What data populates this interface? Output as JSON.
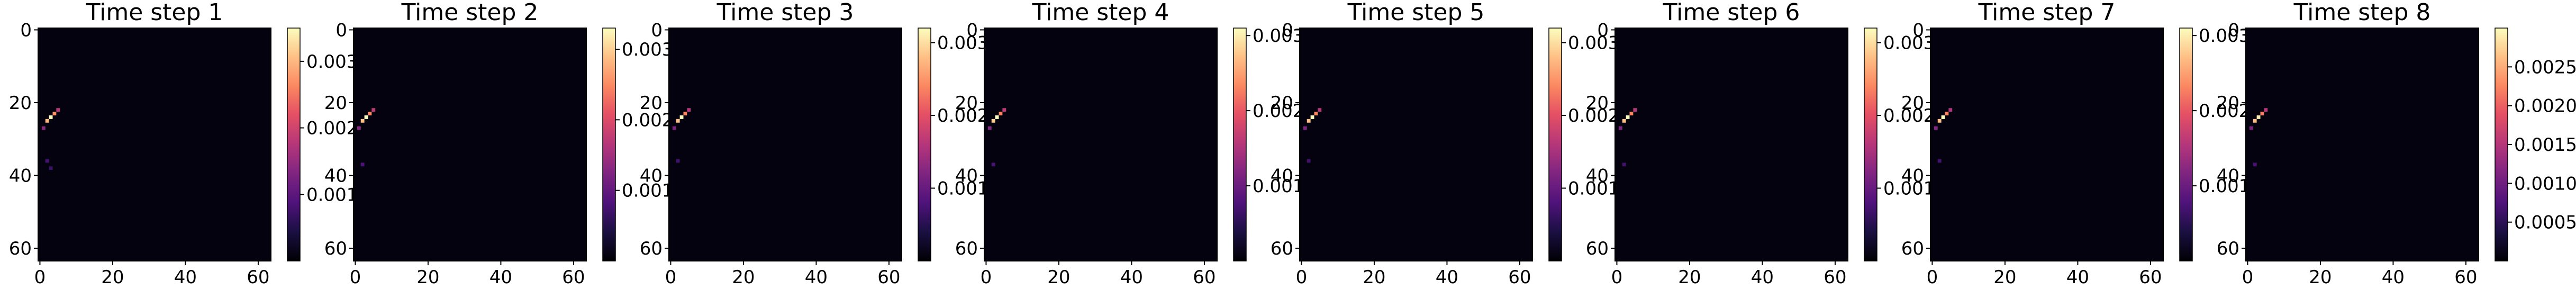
{
  "chart_data": [
    {
      "type": "heatmap",
      "title": "Time step 1",
      "colormap": "magma",
      "xticks": [
        "0",
        "20",
        "40",
        "60"
      ],
      "yticks": [
        "0",
        "20",
        "40",
        "60"
      ],
      "xlim": [
        0,
        64
      ],
      "ylim": [
        64,
        0
      ],
      "colorbar": {
        "range": [
          0,
          0.0035
        ],
        "ticks": [
          {
            "value": 0.001,
            "label": "0.001"
          },
          {
            "value": 0.002,
            "label": "0.002"
          },
          {
            "value": 0.003,
            "label": "0.003"
          }
        ]
      },
      "hotspots": [
        {
          "x": 3,
          "y": 24,
          "value": 0.0035
        },
        {
          "x": 2,
          "y": 25,
          "value": 0.003
        },
        {
          "x": 4,
          "y": 23,
          "value": 0.0027
        },
        {
          "x": 5,
          "y": 22,
          "value": 0.0018
        },
        {
          "x": 1,
          "y": 27,
          "value": 0.0014
        },
        {
          "x": 2,
          "y": 36,
          "value": 0.0008
        },
        {
          "x": 3,
          "y": 38,
          "value": 0.0007
        }
      ]
    },
    {
      "type": "heatmap",
      "title": "Time step 2",
      "colormap": "magma",
      "xticks": [
        "0",
        "20",
        "40",
        "60"
      ],
      "yticks": [
        "0",
        "20",
        "40",
        "60"
      ],
      "xlim": [
        0,
        64
      ],
      "ylim": [
        64,
        0
      ],
      "colorbar": {
        "range": [
          0,
          0.0033
        ],
        "ticks": [
          {
            "value": 0.001,
            "label": "0.001"
          },
          {
            "value": 0.002,
            "label": "0.002"
          },
          {
            "value": 0.003,
            "label": "0.003"
          }
        ]
      },
      "hotspots": [
        {
          "x": 3,
          "y": 24,
          "value": 0.0033
        },
        {
          "x": 2,
          "y": 25,
          "value": 0.0029
        },
        {
          "x": 4,
          "y": 23,
          "value": 0.0025
        },
        {
          "x": 5,
          "y": 22,
          "value": 0.0017
        },
        {
          "x": 1,
          "y": 27,
          "value": 0.0013
        },
        {
          "x": 2,
          "y": 37,
          "value": 0.0008
        }
      ]
    },
    {
      "type": "heatmap",
      "title": "Time step 3",
      "colormap": "magma",
      "xticks": [
        "0",
        "20",
        "40",
        "60"
      ],
      "yticks": [
        "0",
        "20",
        "40",
        "60"
      ],
      "xlim": [
        0,
        64
      ],
      "ylim": [
        64,
        0
      ],
      "colorbar": {
        "range": [
          0,
          0.0032
        ],
        "ticks": [
          {
            "value": 0.001,
            "label": "0.001"
          },
          {
            "value": 0.002,
            "label": "0.002"
          },
          {
            "value": 0.003,
            "label": "0.003"
          }
        ]
      },
      "hotspots": [
        {
          "x": 3,
          "y": 24,
          "value": 0.0032
        },
        {
          "x": 2,
          "y": 25,
          "value": 0.0028
        },
        {
          "x": 4,
          "y": 23,
          "value": 0.0024
        },
        {
          "x": 5,
          "y": 22,
          "value": 0.0016
        },
        {
          "x": 1,
          "y": 27,
          "value": 0.0012
        },
        {
          "x": 2,
          "y": 36,
          "value": 0.0007
        }
      ]
    },
    {
      "type": "heatmap",
      "title": "Time step 4",
      "colormap": "magma",
      "xticks": [
        "0",
        "20",
        "40",
        "60"
      ],
      "yticks": [
        "0",
        "20",
        "40",
        "60"
      ],
      "xlim": [
        0,
        64
      ],
      "ylim": [
        64,
        0
      ],
      "colorbar": {
        "range": [
          0,
          0.0031
        ],
        "ticks": [
          {
            "value": 0.001,
            "label": "0.001"
          },
          {
            "value": 0.002,
            "label": "0.002"
          },
          {
            "value": 0.003,
            "label": "0.003"
          }
        ]
      },
      "hotspots": [
        {
          "x": 3,
          "y": 24,
          "value": 0.0031
        },
        {
          "x": 2,
          "y": 25,
          "value": 0.0028
        },
        {
          "x": 4,
          "y": 23,
          "value": 0.0023
        },
        {
          "x": 5,
          "y": 22,
          "value": 0.0016
        },
        {
          "x": 1,
          "y": 27,
          "value": 0.0012
        },
        {
          "x": 2,
          "y": 37,
          "value": 0.0007
        }
      ]
    },
    {
      "type": "heatmap",
      "title": "Time step 5",
      "colormap": "magma",
      "xticks": [
        "0",
        "20",
        "40",
        "60"
      ],
      "yticks": [
        "0",
        "20",
        "40",
        "60"
      ],
      "xlim": [
        0,
        64
      ],
      "ylim": [
        64,
        0
      ],
      "colorbar": {
        "range": [
          0,
          0.0032
        ],
        "ticks": [
          {
            "value": 0.001,
            "label": "0.001"
          },
          {
            "value": 0.002,
            "label": "0.002"
          },
          {
            "value": 0.003,
            "label": "0.003"
          }
        ]
      },
      "hotspots": [
        {
          "x": 3,
          "y": 24,
          "value": 0.0032
        },
        {
          "x": 2,
          "y": 25,
          "value": 0.0028
        },
        {
          "x": 4,
          "y": 23,
          "value": 0.0024
        },
        {
          "x": 5,
          "y": 22,
          "value": 0.0016
        },
        {
          "x": 1,
          "y": 27,
          "value": 0.0012
        },
        {
          "x": 2,
          "y": 36,
          "value": 0.0007
        }
      ]
    },
    {
      "type": "heatmap",
      "title": "Time step 6",
      "colormap": "magma",
      "xticks": [
        "0",
        "20",
        "40",
        "60"
      ],
      "yticks": [
        "0",
        "20",
        "40",
        "60"
      ],
      "xlim": [
        0,
        64
      ],
      "ylim": [
        64,
        0
      ],
      "colorbar": {
        "range": [
          0,
          0.0032
        ],
        "ticks": [
          {
            "value": 0.001,
            "label": "0.001"
          },
          {
            "value": 0.002,
            "label": "0.002"
          },
          {
            "value": 0.003,
            "label": "0.003"
          }
        ]
      },
      "hotspots": [
        {
          "x": 3,
          "y": 24,
          "value": 0.0032
        },
        {
          "x": 2,
          "y": 25,
          "value": 0.0028
        },
        {
          "x": 4,
          "y": 23,
          "value": 0.0024
        },
        {
          "x": 5,
          "y": 22,
          "value": 0.0016
        },
        {
          "x": 1,
          "y": 27,
          "value": 0.0012
        },
        {
          "x": 2,
          "y": 37,
          "value": 0.0007
        }
      ]
    },
    {
      "type": "heatmap",
      "title": "Time step 7",
      "colormap": "magma",
      "xticks": [
        "0",
        "20",
        "40",
        "60"
      ],
      "yticks": [
        "0",
        "20",
        "40",
        "60"
      ],
      "xlim": [
        0,
        64
      ],
      "ylim": [
        64,
        0
      ],
      "colorbar": {
        "range": [
          0,
          0.0031
        ],
        "ticks": [
          {
            "value": 0.001,
            "label": "0.001"
          },
          {
            "value": 0.002,
            "label": "0.002"
          },
          {
            "value": 0.003,
            "label": "0.003"
          }
        ]
      },
      "hotspots": [
        {
          "x": 3,
          "y": 24,
          "value": 0.0031
        },
        {
          "x": 2,
          "y": 25,
          "value": 0.0027
        },
        {
          "x": 4,
          "y": 23,
          "value": 0.0023
        },
        {
          "x": 5,
          "y": 22,
          "value": 0.0015
        },
        {
          "x": 1,
          "y": 27,
          "value": 0.0012
        },
        {
          "x": 2,
          "y": 36,
          "value": 0.0007
        }
      ]
    },
    {
      "type": "heatmap",
      "title": "Time step 8",
      "colormap": "magma",
      "xticks": [
        "0",
        "20",
        "40",
        "60"
      ],
      "yticks": [
        "0",
        "20",
        "40",
        "60"
      ],
      "xlim": [
        0,
        64
      ],
      "ylim": [
        64,
        0
      ],
      "colorbar": {
        "range": [
          0,
          0.003
        ],
        "ticks": [
          {
            "value": 0.0005,
            "label": "0.0005"
          },
          {
            "value": 0.001,
            "label": "0.0010"
          },
          {
            "value": 0.0015,
            "label": "0.0015"
          },
          {
            "value": 0.002,
            "label": "0.0020"
          },
          {
            "value": 0.0025,
            "label": "0.0025"
          }
        ]
      },
      "hotspots": [
        {
          "x": 3,
          "y": 24,
          "value": 0.0029
        },
        {
          "x": 2,
          "y": 25,
          "value": 0.0026
        },
        {
          "x": 4,
          "y": 23,
          "value": 0.0022
        },
        {
          "x": 5,
          "y": 22,
          "value": 0.0015
        },
        {
          "x": 1,
          "y": 27,
          "value": 0.0011
        },
        {
          "x": 2,
          "y": 37,
          "value": 0.0007
        }
      ]
    }
  ]
}
